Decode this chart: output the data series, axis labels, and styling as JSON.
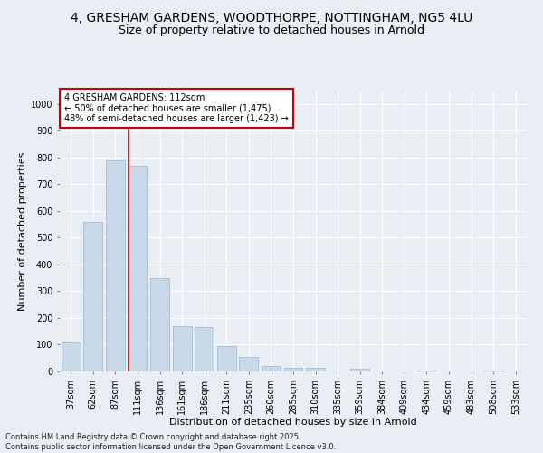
{
  "title_line1": "4, GRESHAM GARDENS, WOODTHORPE, NOTTINGHAM, NG5 4LU",
  "title_line2": "Size of property relative to detached houses in Arnold",
  "xlabel": "Distribution of detached houses by size in Arnold",
  "ylabel": "Number of detached properties",
  "categories": [
    "37sqm",
    "62sqm",
    "87sqm",
    "111sqm",
    "136sqm",
    "161sqm",
    "186sqm",
    "211sqm",
    "235sqm",
    "260sqm",
    "285sqm",
    "310sqm",
    "335sqm",
    "359sqm",
    "384sqm",
    "409sqm",
    "434sqm",
    "459sqm",
    "483sqm",
    "508sqm",
    "533sqm"
  ],
  "values": [
    110,
    560,
    790,
    770,
    350,
    170,
    165,
    95,
    55,
    20,
    15,
    15,
    0,
    10,
    0,
    0,
    5,
    0,
    0,
    5,
    0
  ],
  "bar_color": "#c9d9ea",
  "bar_edge_color": "#9ab4cc",
  "highlight_bar_index": 3,
  "highlight_line_color": "#cc0000",
  "ylim": [
    0,
    1050
  ],
  "yticks": [
    0,
    100,
    200,
    300,
    400,
    500,
    600,
    700,
    800,
    900,
    1000
  ],
  "annotation_text": "4 GRESHAM GARDENS: 112sqm\n← 50% of detached houses are smaller (1,475)\n48% of semi-detached houses are larger (1,423) →",
  "annotation_box_color": "#ffffff",
  "annotation_border_color": "#cc0000",
  "footer_line1": "Contains HM Land Registry data © Crown copyright and database right 2025.",
  "footer_line2": "Contains public sector information licensed under the Open Government Licence v3.0.",
  "bg_color": "#e8eef4",
  "plot_bg_color": "#e8eef4",
  "grid_color": "#ffffff",
  "title_fontsize": 10,
  "subtitle_fontsize": 9,
  "tick_fontsize": 7,
  "label_fontsize": 8,
  "footer_fontsize": 6,
  "annotation_fontsize": 7
}
